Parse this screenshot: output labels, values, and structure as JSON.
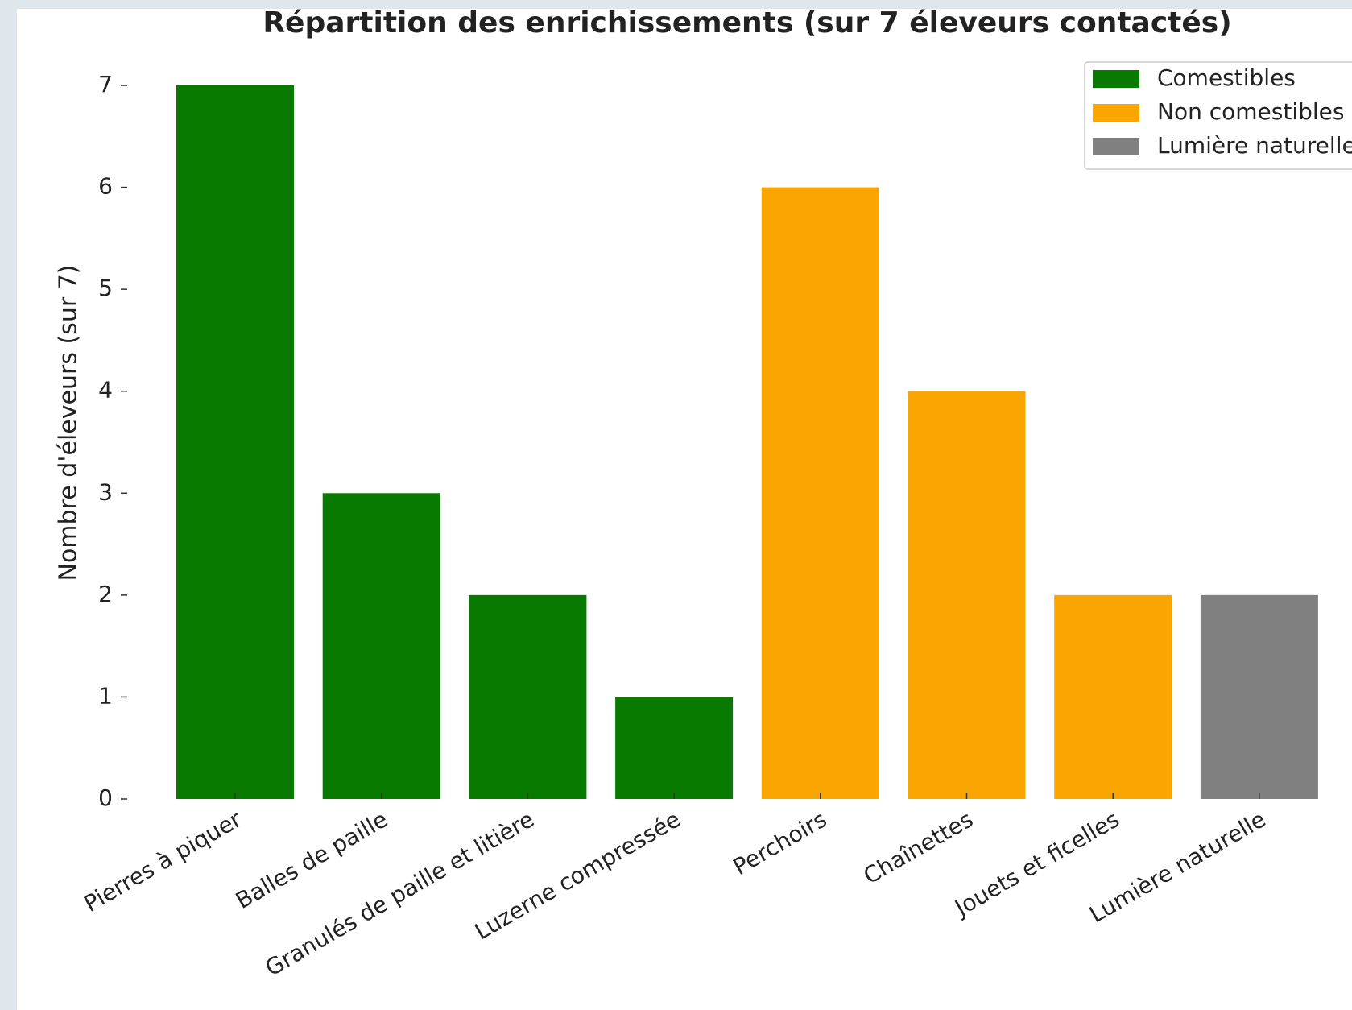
{
  "chart_data": {
    "type": "bar",
    "title": "Répartition des enrichissements (sur 7 éleveurs contactés)",
    "y_label": "Nombre d'éleveurs (sur 7)",
    "categories": [
      "Pierres à piquer",
      "Balles de paille",
      "Granulés de paille et litière",
      "Luzerne compressée",
      "Perchoirs",
      "Chaînettes",
      "Jouets et ficelles",
      "Lumière naturelle"
    ],
    "series": [
      {
        "name": "Comestibles",
        "color": "#087a00",
        "values": [
          7,
          3,
          2,
          1,
          null,
          null,
          null,
          null
        ]
      },
      {
        "name": "Non comestibles",
        "color": "#fba503",
        "values": [
          null,
          null,
          null,
          null,
          6,
          4,
          2,
          null
        ]
      },
      {
        "name": "Lumière naturelle",
        "color": "#808080",
        "values": [
          null,
          null,
          null,
          null,
          null,
          null,
          null,
          2
        ]
      }
    ],
    "ylim": [
      0,
      7
    ],
    "yticks": [
      0,
      1,
      2,
      3,
      4,
      5,
      6,
      7
    ],
    "grid": false,
    "legend": "upper right"
  }
}
